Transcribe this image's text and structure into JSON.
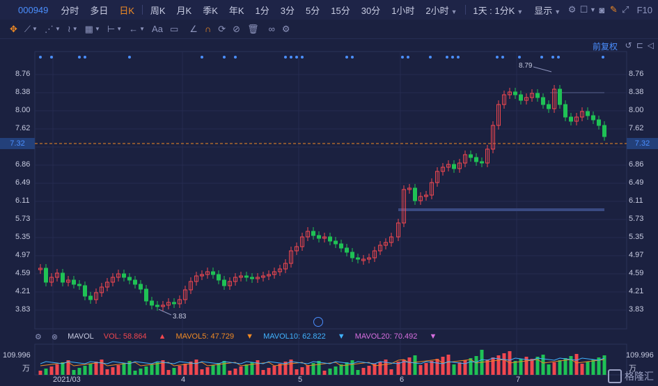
{
  "header": {
    "code": "000949",
    "tabs": [
      "分时",
      "多日",
      "日K",
      "周K",
      "月K",
      "季K",
      "年K",
      "1分",
      "3分",
      "5分",
      "15分",
      "30分",
      "1小时",
      "2小时"
    ],
    "active_tab": "日K",
    "period_select": "1天 : 1分K",
    "display_select": "显示",
    "f10_label": "F10"
  },
  "toolbar": {
    "text_tool": "Aa"
  },
  "restore_label": "前复权",
  "price_axis": [
    "8.76",
    "8.38",
    "8.00",
    "7.62",
    "6.86",
    "6.49",
    "6.11",
    "5.73",
    "5.35",
    "4.97",
    "4.59",
    "4.21",
    "3.83"
  ],
  "current_price": "7.32",
  "annotations": {
    "high": "8.79",
    "low": "3.83"
  },
  "volume": {
    "indicator": "MAVOL",
    "vol": "VOL: 58.864",
    "mavol5": "MAVOL5: 47.729",
    "mavol10": "MAVOL10: 62.822",
    "mavol20": "MAVOL20: 70.492",
    "axis_top": "109.996",
    "axis_unit": "万"
  },
  "x_labels": [
    "2021/03",
    "4",
    "5",
    "6",
    "7"
  ],
  "colors": {
    "up": "#f0474f",
    "down": "#1fc255",
    "accent": "#f08a24",
    "link": "#4b8fff"
  },
  "watermark": "格隆汇"
}
